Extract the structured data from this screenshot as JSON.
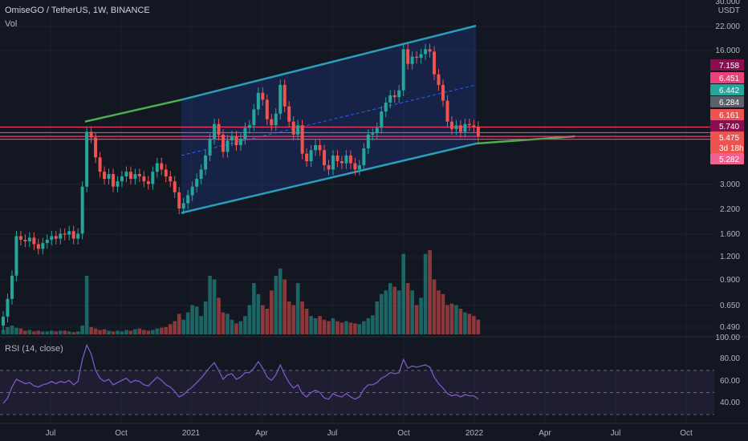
{
  "header": {
    "symbol": "OmiseGO / TetherUS, 1W, BINANCE",
    "vol_label": "Vol",
    "rsi_label": "RSI (14, close)"
  },
  "colors": {
    "background": "#131722",
    "up": "#26a69a",
    "down": "#ef5350",
    "channel_line": "#2a9fbd",
    "channel_fill": "#1e3a8a",
    "support_line": "#4caf50",
    "horizontal_line": "#f23d6d",
    "rsi_line": "#7e57c2",
    "grid": "#1e222d"
  },
  "chart_data": [
    {
      "type": "candlestick",
      "axis": {
        "currency": "USDT",
        "y_scale": "log",
        "ylim": [
          0.45,
          30
        ],
        "y_ticks": [
          "30.000",
          "22.000",
          "16.000",
          "3.000",
          "2.200",
          "1.600",
          "1.200",
          "0.900",
          "0.650",
          "0.490"
        ],
        "x_ticks": [
          "Jul",
          "Oct",
          "2021",
          "Apr",
          "Jul",
          "Oct",
          "2022",
          "Apr",
          "Jul",
          "Oct"
        ]
      },
      "price_badges": [
        {
          "label": "7.158",
          "color": "#880e4f"
        },
        {
          "label": "6.451",
          "color": "#ec407a"
        },
        {
          "label": "6.442",
          "color": "#26a69a"
        },
        {
          "label": "6.284",
          "color": "#5d606b"
        },
        {
          "label": "6.161",
          "color": "#ef5350"
        },
        {
          "label": "5.740",
          "color": "#880e4f"
        },
        {
          "label": "5.475",
          "color": "#ef5350"
        },
        {
          "label": "3d 18h",
          "color": "#ef5350"
        },
        {
          "label": "5.282",
          "color": "#f06292"
        }
      ],
      "horizontal_lines": [
        6.161,
        5.74,
        5.475,
        5.282
      ],
      "close": [
        0.56,
        0.7,
        0.94,
        1.55,
        1.48,
        1.45,
        1.52,
        1.4,
        1.32,
        1.42,
        1.48,
        1.55,
        1.5,
        1.6,
        1.58,
        1.65,
        1.5,
        1.6,
        2.9,
        5.8,
        5.4,
        4.2,
        3.5,
        3.2,
        3.4,
        2.9,
        3.1,
        3.3,
        3.5,
        3.2,
        3.4,
        3.3,
        3.1,
        3.0,
        3.5,
        3.9,
        3.6,
        3.3,
        3.1,
        2.7,
        2.2,
        2.35,
        2.6,
        2.9,
        3.2,
        3.6,
        4.3,
        5.3,
        6.4,
        5.6,
        4.5,
        5.2,
        5.5,
        4.9,
        5.3,
        6.1,
        6.3,
        7.7,
        9.5,
        8.7,
        6.8,
        6.3,
        7.3,
        10.5,
        8.0,
        6.6,
        5.6,
        6.3,
        4.4,
        4.0,
        4.6,
        4.9,
        4.6,
        3.8,
        3.6,
        4.3,
        4.0,
        3.9,
        4.3,
        3.9,
        3.6,
        3.8,
        4.7,
        5.6,
        5.7,
        6.1,
        7.5,
        8.4,
        9.2,
        9.0,
        9.8,
        16.5,
        13.7,
        15.0,
        14.8,
        15.5,
        16.5,
        16.0,
        12.0,
        10.5,
        8.6,
        6.6,
        6.0,
        6.3,
        5.8,
        6.4,
        6.3,
        6.2,
        5.48
      ],
      "volume": [
        6,
        10,
        12,
        9,
        8,
        5,
        6,
        4,
        5,
        4,
        4,
        5,
        4,
        5,
        5,
        4,
        3,
        4,
        12,
        80,
        10,
        8,
        6,
        7,
        5,
        4,
        5,
        4,
        6,
        5,
        7,
        8,
        6,
        5,
        6,
        8,
        9,
        10,
        14,
        18,
        28,
        20,
        30,
        40,
        38,
        25,
        45,
        80,
        75,
        50,
        30,
        28,
        20,
        15,
        18,
        25,
        40,
        70,
        55,
        40,
        35,
        60,
        80,
        90,
        75,
        45,
        40,
        70,
        45,
        35,
        25,
        22,
        25,
        20,
        18,
        22,
        18,
        16,
        18,
        16,
        15,
        14,
        18,
        22,
        26,
        45,
        55,
        60,
        70,
        65,
        60,
        110,
        70,
        60,
        40,
        50,
        110,
        115,
        75,
        60,
        55,
        40,
        42,
        40,
        35,
        30,
        28,
        25,
        20
      ],
      "rsi": [
        40,
        45,
        55,
        62,
        60,
        58,
        59,
        56,
        55,
        57,
        58,
        60,
        58,
        60,
        59,
        61,
        57,
        60,
        80,
        93,
        85,
        70,
        63,
        60,
        62,
        57,
        59,
        61,
        63,
        59,
        61,
        60,
        57,
        56,
        60,
        64,
        61,
        57,
        55,
        51,
        46,
        48,
        52,
        55,
        59,
        63,
        68,
        73,
        77,
        70,
        62,
        66,
        67,
        62,
        64,
        68,
        68,
        72,
        78,
        72,
        64,
        61,
        66,
        75,
        66,
        59,
        54,
        57,
        49,
        46,
        50,
        52,
        50,
        45,
        44,
        49,
        47,
        46,
        49,
        46,
        44,
        46,
        53,
        57,
        57,
        59,
        63,
        65,
        68,
        67,
        68,
        80,
        72,
        74,
        73,
        74,
        75,
        73,
        64,
        58,
        54,
        49,
        47,
        48,
        46,
        48,
        47,
        47,
        44
      ],
      "rsi_axis": {
        "ylim": [
          25,
          100
        ],
        "y_ticks": [
          "100.00",
          "80.00",
          "60.00",
          "40.00"
        ],
        "bands": [
          70,
          50,
          30
        ]
      }
    }
  ]
}
